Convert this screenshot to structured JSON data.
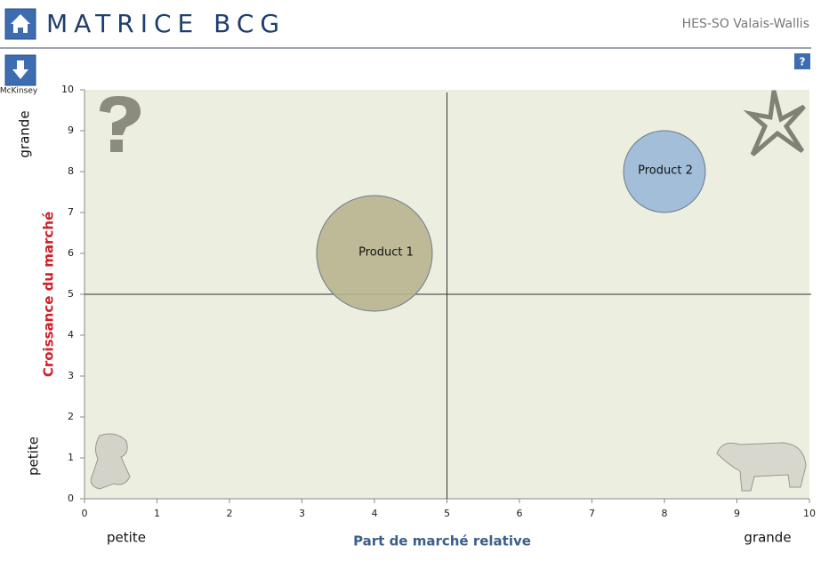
{
  "header": {
    "title": "MATRICE BCG",
    "org": "HES-SO Valais-Wallis",
    "nav_label": "McKinsey",
    "help": "?"
  },
  "chart_data": {
    "type": "bubble",
    "x_label": "Part de marché relative",
    "y_label": "Croissance du marché",
    "x_end_labels": [
      "petite",
      "grande"
    ],
    "y_end_labels": [
      "petite",
      "grande"
    ],
    "xlim": [
      0,
      10
    ],
    "ylim": [
      0,
      10
    ],
    "xticks": [
      0,
      1,
      2,
      3,
      4,
      5,
      6,
      7,
      8,
      9,
      10
    ],
    "yticks": [
      0,
      1,
      2,
      3,
      4,
      5,
      6,
      7,
      8,
      9,
      10
    ],
    "grid": false,
    "background": "#eceedf",
    "dividers": {
      "x": 5,
      "y": 5
    },
    "series": [
      {
        "name": "Product 1",
        "color": "#b9b48f",
        "x": [
          4
        ],
        "values": [
          6
        ],
        "sizes": [
          2
        ]
      },
      {
        "name": "Product 2",
        "color": "#9bb8d8",
        "x": [
          8
        ],
        "values": [
          8
        ],
        "sizes": [
          1
        ]
      }
    ]
  }
}
